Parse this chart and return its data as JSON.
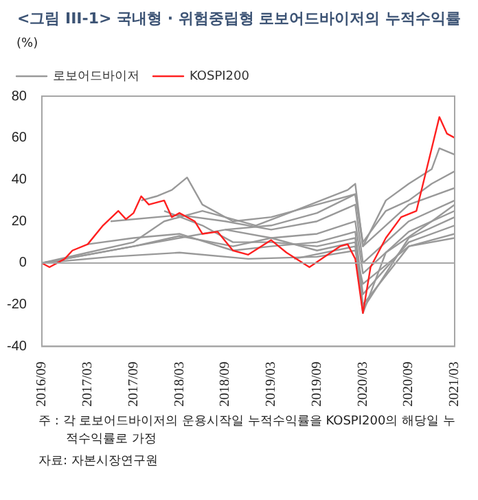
{
  "chart_data": {
    "type": "line",
    "title": "<그림 III-1> 국내형 · 위험중립형 로보어드바이저의 누적수익률",
    "ylabel": "(%)",
    "xlim": [
      "2016-09",
      "2021-03"
    ],
    "xticks": [
      {
        "value": "2016-09",
        "label": "2016/09"
      },
      {
        "value": "2017-03",
        "label": "2017/03"
      },
      {
        "value": "2017-09",
        "label": "2017/09"
      },
      {
        "value": "2018-03",
        "label": "2018/03"
      },
      {
        "value": "2018-09",
        "label": "2018/09"
      },
      {
        "value": "2019-03",
        "label": "2019/03"
      },
      {
        "value": "2019-09",
        "label": "2019/09"
      },
      {
        "value": "2020-03",
        "label": "2020/03"
      },
      {
        "value": "2020-09",
        "label": "2020/09"
      },
      {
        "value": "2021-03",
        "label": "2021/03"
      }
    ],
    "ylim": [
      -40,
      80
    ],
    "yticks": [
      -40,
      -20,
      0,
      20,
      40,
      60,
      80
    ],
    "grid": false,
    "legend": "top left",
    "marker": "none",
    "line_style": "solid",
    "ref_lines": [
      {
        "axis": "y",
        "value": 0,
        "label": null,
        "color": "#a6a6a6"
      }
    ],
    "annotations": [
      "주 : 각 로보어드바이저의 운용시작일 누적수익률을 KOSPI200의 해당일 누적수익률로 가정",
      "자료: 자본시장연구원"
    ],
    "series": [
      {
        "name": "로보어드바이저",
        "color": "#999999",
        "x": [
          "2016-09",
          "2017-03",
          "2017-09",
          "2018-01",
          "2018-06",
          "2019-01",
          "2019-06",
          "2020-01",
          "2020-02",
          "2020-03",
          "2020-06",
          "2020-09",
          "2020-12",
          "2021-01",
          "2021-03"
        ],
        "values": [
          0,
          5,
          10,
          20,
          25,
          18,
          25,
          35,
          38,
          8,
          30,
          38,
          45,
          55,
          52
        ]
      },
      {
        "color": "#999999",
        "x": [
          "2016-09",
          "2017-03",
          "2017-09",
          "2018-03",
          "2018-09",
          "2019-03",
          "2019-09",
          "2020-02",
          "2020-03",
          "2020-06",
          "2020-09",
          "2020-12",
          "2021-03"
        ],
        "values": [
          0,
          4,
          8,
          12,
          16,
          18,
          24,
          33,
          10,
          25,
          30,
          38,
          44
        ]
      },
      {
        "color": "#999999",
        "x": [
          "2017-10",
          "2017-12",
          "2018-02",
          "2018-04",
          "2018-06",
          "2018-10",
          "2019-03",
          "2019-09",
          "2020-02",
          "2020-03",
          "2020-09",
          "2021-03"
        ],
        "values": [
          30,
          32,
          35,
          41,
          28,
          20,
          22,
          28,
          33,
          8,
          28,
          36
        ]
      },
      {
        "color": "#999999",
        "x": [
          "2017-06",
          "2018-03",
          "2018-09",
          "2019-03",
          "2019-09",
          "2020-02",
          "2020-03",
          "2020-09",
          "2021-03"
        ],
        "values": [
          20,
          23,
          20,
          16,
          20,
          28,
          0,
          20,
          30
        ]
      },
      {
        "color": "#999999",
        "x": [
          "2016-09",
          "2017-09",
          "2018-03",
          "2018-10",
          "2019-03",
          "2019-09",
          "2020-02",
          "2020-03",
          "2020-09",
          "2021-03"
        ],
        "values": [
          0,
          8,
          13,
          8,
          12,
          14,
          20,
          -5,
          15,
          25
        ]
      },
      {
        "color": "#999999",
        "x": [
          "2017-03",
          "2017-09",
          "2018-03",
          "2018-10",
          "2019-03",
          "2019-09",
          "2020-02",
          "2020-03",
          "2020-09",
          "2021-03"
        ],
        "values": [
          9,
          12,
          14,
          6,
          8,
          10,
          15,
          -15,
          10,
          18
        ]
      },
      {
        "color": "#999999",
        "x": [
          "2018-01",
          "2018-06",
          "2018-10",
          "2019-03",
          "2019-09",
          "2020-02",
          "2020-03",
          "2020-09",
          "2021-03"
        ],
        "values": [
          25,
          18,
          10,
          10,
          8,
          12,
          -20,
          8,
          14
        ]
      },
      {
        "color": "#999999",
        "x": [
          "2018-09",
          "2019-03",
          "2019-09",
          "2020-02",
          "2020-03",
          "2020-09",
          "2021-03"
        ],
        "values": [
          16,
          12,
          6,
          10,
          -22,
          12,
          22
        ]
      },
      {
        "color": "#999999",
        "x": [
          "2019-06",
          "2020-02",
          "2020-03",
          "2020-06",
          "2020-12",
          "2021-03"
        ],
        "values": [
          2,
          8,
          -24,
          5,
          20,
          28
        ]
      },
      {
        "color": "#999999",
        "x": [
          "2016-09",
          "2017-06",
          "2018-03",
          "2018-12",
          "2019-09",
          "2020-02",
          "2020-03",
          "2020-09",
          "2021-03"
        ],
        "values": [
          0,
          3,
          5,
          2,
          3,
          6,
          -10,
          8,
          12
        ]
      },
      {
        "name": "KOSPI200",
        "color": "#ff2020",
        "x": [
          "2016-09",
          "2016-10",
          "2016-12",
          "2017-01",
          "2017-03",
          "2017-05",
          "2017-07",
          "2017-08",
          "2017-09",
          "2017-10",
          "2017-11",
          "2018-01",
          "2018-02",
          "2018-03",
          "2018-05",
          "2018-06",
          "2018-08",
          "2018-10",
          "2018-12",
          "2019-03",
          "2019-05",
          "2019-08",
          "2019-10",
          "2019-12",
          "2020-01",
          "2020-02",
          "2020-03",
          "2020-04",
          "2020-06",
          "2020-08",
          "2020-10",
          "2020-11",
          "2020-12",
          "2021-01",
          "2021-02",
          "2021-03"
        ],
        "values": [
          0,
          -2,
          2,
          6,
          9,
          18,
          25,
          21,
          24,
          32,
          28,
          30,
          22,
          24,
          20,
          14,
          15,
          6,
          4,
          11,
          5,
          -2,
          3,
          8,
          9,
          2,
          -24,
          -2,
          12,
          22,
          25,
          40,
          55,
          70,
          62,
          60
        ]
      }
    ]
  }
}
